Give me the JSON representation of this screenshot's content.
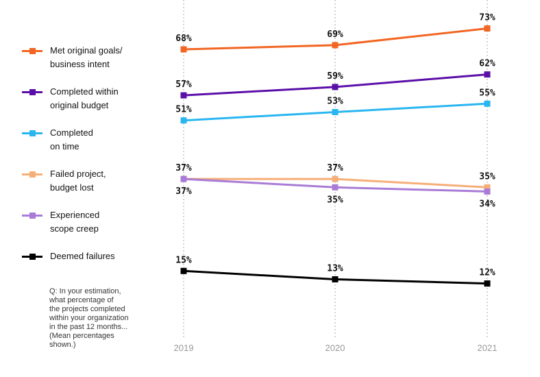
{
  "legend": [
    {
      "label": "Met original goals/\nbusiness intent",
      "color": "#f26522"
    },
    {
      "label": "Completed within\noriginal budget",
      "color": "#5b0fa8"
    },
    {
      "label": "Completed\non time",
      "color": "#29b6f0"
    },
    {
      "label": "Failed project,\nbudget lost",
      "color": "#f6ae78"
    },
    {
      "label": "Experienced\nscope creep",
      "color": "#a97bd6"
    },
    {
      "label": "Deemed failures",
      "color": "#000000"
    }
  ],
  "question": "Q: In your estimation,\nwhat percentage of\nthe projects completed\nwithin your organization\nin the past 12 months...\n(Mean percentages\nshown.)",
  "chart_data": {
    "type": "line",
    "x": [
      "2019",
      "2020",
      "2021"
    ],
    "grid": "vertical dotted lines at each year",
    "legend_position": "left",
    "series": [
      {
        "name": "Met original goals/ business intent",
        "values": [
          68,
          69,
          73
        ],
        "labels": [
          "68%",
          "69%",
          "73%"
        ],
        "label_pos": [
          "above",
          "above",
          "above"
        ],
        "color": "#f26522"
      },
      {
        "name": "Completed within original budget",
        "values": [
          57,
          59,
          62
        ],
        "labels": [
          "57%",
          "59%",
          "62%"
        ],
        "label_pos": [
          "above",
          "above",
          "above"
        ],
        "color": "#5b0fa8"
      },
      {
        "name": "Completed on time",
        "values": [
          51,
          53,
          55
        ],
        "labels": [
          "51%",
          "53%",
          "55%"
        ],
        "label_pos": [
          "above",
          "above",
          "above"
        ],
        "color": "#29b6f0"
      },
      {
        "name": "Failed project, budget lost",
        "values": [
          37,
          37,
          35
        ],
        "labels": [
          "37%",
          "37%",
          "35%"
        ],
        "label_pos": [
          "above",
          "above",
          "above"
        ],
        "color": "#f6ae78"
      },
      {
        "name": "Experienced scope creep",
        "values": [
          37,
          35,
          34
        ],
        "labels": [
          "37%",
          "35%",
          "34%"
        ],
        "label_pos": [
          "below",
          "below",
          "below"
        ],
        "color": "#a97bd6"
      },
      {
        "name": "Deemed failures",
        "values": [
          15,
          13,
          12
        ],
        "labels": [
          "15%",
          "13%",
          "12%"
        ],
        "label_pos": [
          "above",
          "above",
          "above"
        ],
        "color": "#000000"
      }
    ]
  }
}
